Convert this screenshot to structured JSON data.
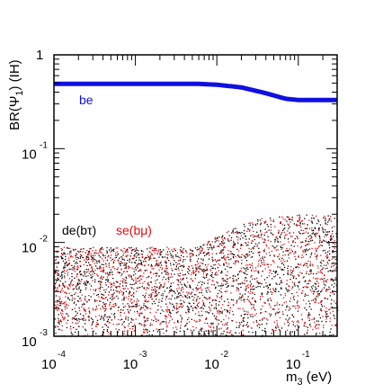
{
  "chart_data": {
    "type": "scatter",
    "x_scale": "log",
    "y_scale": "log",
    "xlim": [
      0.0001,
      0.3
    ],
    "ylim": [
      0.001,
      1
    ],
    "xlabel": "m",
    "xlabel_sub": "3",
    "xlabel_unit": " (eV)",
    "ylabel": "BR(Ψ",
    "ylabel_sub": "1",
    "ylabel_tail": ") (IH)",
    "x_ticks": [
      {
        "base": "10",
        "exp": "-4",
        "value": 0.0001
      },
      {
        "base": "10",
        "exp": "-3",
        "value": 0.001
      },
      {
        "base": "10",
        "exp": "-2",
        "value": 0.01
      },
      {
        "base": "10",
        "exp": "-1",
        "value": 0.1
      }
    ],
    "y_ticks": [
      {
        "base": "1",
        "exp": "",
        "value": 1
      },
      {
        "base": "10",
        "exp": "-1",
        "value": 0.1
      },
      {
        "base": "10",
        "exp": "-2",
        "value": 0.01
      },
      {
        "base": "10",
        "exp": "-3",
        "value": 0.001
      }
    ],
    "series": [
      {
        "name": "be",
        "color": "#1010e0",
        "style": "band",
        "x": [
          0.0001,
          0.001,
          0.003,
          0.006,
          0.01,
          0.02,
          0.04,
          0.07,
          0.1,
          0.2,
          0.3
        ],
        "y": [
          0.49,
          0.49,
          0.49,
          0.49,
          0.48,
          0.45,
          0.39,
          0.34,
          0.33,
          0.33,
          0.33
        ]
      },
      {
        "name": "de(bτ)",
        "color": "#000000",
        "style": "scatter",
        "y_min": 0.001,
        "y_upper_x": [
          0.0001,
          0.001,
          0.006,
          0.01,
          0.03,
          0.1,
          0.3
        ],
        "y_upper": [
          0.009,
          0.009,
          0.009,
          0.012,
          0.018,
          0.02,
          0.02
        ]
      },
      {
        "name": "se(bμ)",
        "color": "#e01010",
        "style": "scatter",
        "y_min": 0.001,
        "y_upper_x": [
          0.0001,
          0.001,
          0.006,
          0.01,
          0.03,
          0.1,
          0.3
        ],
        "y_upper": [
          0.009,
          0.009,
          0.009,
          0.012,
          0.018,
          0.02,
          0.02
        ]
      }
    ]
  }
}
